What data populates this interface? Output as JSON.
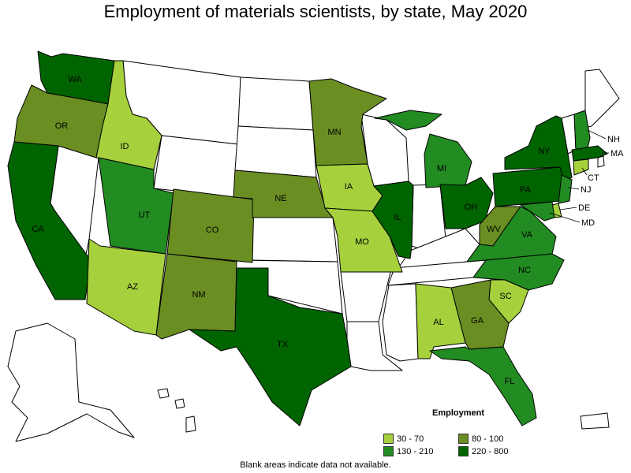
{
  "title": "Employment of materials scientists, by state, May 2020",
  "note": "Blank areas indicate data not available.",
  "legend": {
    "title": "Employment",
    "items": [
      {
        "label": "30 - 70",
        "color": "#a6d13d"
      },
      {
        "label": "80 - 100",
        "color": "#6b8e23"
      },
      {
        "label": "130 - 210",
        "color": "#228b22"
      },
      {
        "label": "220 - 800",
        "color": "#006400"
      }
    ]
  },
  "chart_data": {
    "type": "choropleth",
    "bins": [
      "30 - 70",
      "80 - 100",
      "130 - 210",
      "220 - 800"
    ],
    "states": [
      {
        "abbr": "WA",
        "bin": "220 - 800"
      },
      {
        "abbr": "OR",
        "bin": "80 - 100"
      },
      {
        "abbr": "CA",
        "bin": "220 - 800"
      },
      {
        "abbr": "ID",
        "bin": "30 - 70"
      },
      {
        "abbr": "UT",
        "bin": "130 - 210"
      },
      {
        "abbr": "AZ",
        "bin": "30 - 70"
      },
      {
        "abbr": "CO",
        "bin": "80 - 100"
      },
      {
        "abbr": "NM",
        "bin": "80 - 100"
      },
      {
        "abbr": "TX",
        "bin": "220 - 800"
      },
      {
        "abbr": "NE",
        "bin": "80 - 100"
      },
      {
        "abbr": "MN",
        "bin": "80 - 100"
      },
      {
        "abbr": "IA",
        "bin": "30 - 70"
      },
      {
        "abbr": "MO",
        "bin": "30 - 70"
      },
      {
        "abbr": "IL",
        "bin": "220 - 800"
      },
      {
        "abbr": "MI",
        "bin": "130 - 210"
      },
      {
        "abbr": "OH",
        "bin": "220 - 800"
      },
      {
        "abbr": "WV",
        "bin": "80 - 100"
      },
      {
        "abbr": "VA",
        "bin": "130 - 210"
      },
      {
        "abbr": "NC",
        "bin": "130 - 210"
      },
      {
        "abbr": "SC",
        "bin": "30 - 70"
      },
      {
        "abbr": "GA",
        "bin": "80 - 100"
      },
      {
        "abbr": "AL",
        "bin": "30 - 70"
      },
      {
        "abbr": "FL",
        "bin": "130 - 210"
      },
      {
        "abbr": "PA",
        "bin": "220 - 800"
      },
      {
        "abbr": "NY",
        "bin": "220 - 800"
      },
      {
        "abbr": "NH",
        "bin": "130 - 210"
      },
      {
        "abbr": "MA",
        "bin": "220 - 800"
      },
      {
        "abbr": "CT",
        "bin": "30 - 70"
      },
      {
        "abbr": "NJ",
        "bin": "130 - 210"
      },
      {
        "abbr": "DE",
        "bin": "30 - 70"
      },
      {
        "abbr": "MD",
        "bin": "130 - 210"
      }
    ]
  }
}
